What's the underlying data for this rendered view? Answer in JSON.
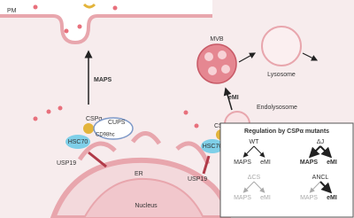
{
  "labels": {
    "pm": "PM",
    "maps": "MAPS",
    "cspa_left": "CSPα",
    "cups": "CUPS",
    "cd98hc": "CD98hc",
    "hsc70_left": "HSC70",
    "usp19_left": "USP19",
    "er": "ER",
    "nucleus": "Nucleus",
    "mvb": "MVB",
    "lysosome": "Lysosome",
    "emi": "eMI",
    "endolysosome": "Endolysosome",
    "cspa_right": "CSPα",
    "hsc70_right": "HSC70",
    "usp19_right": "USP19"
  },
  "regulation": {
    "title": "Regulation by CSPα mutants",
    "panels": [
      {
        "name": "WT",
        "left": "MAPS",
        "right": "eMI"
      },
      {
        "name": "ΔJ",
        "left": "MAPS",
        "right": "eMI"
      },
      {
        "name": "ΔCS",
        "left": "MAPS",
        "right": "eMI"
      },
      {
        "name": "ANCL",
        "left": "MAPS",
        "right": "eMI"
      }
    ]
  }
}
